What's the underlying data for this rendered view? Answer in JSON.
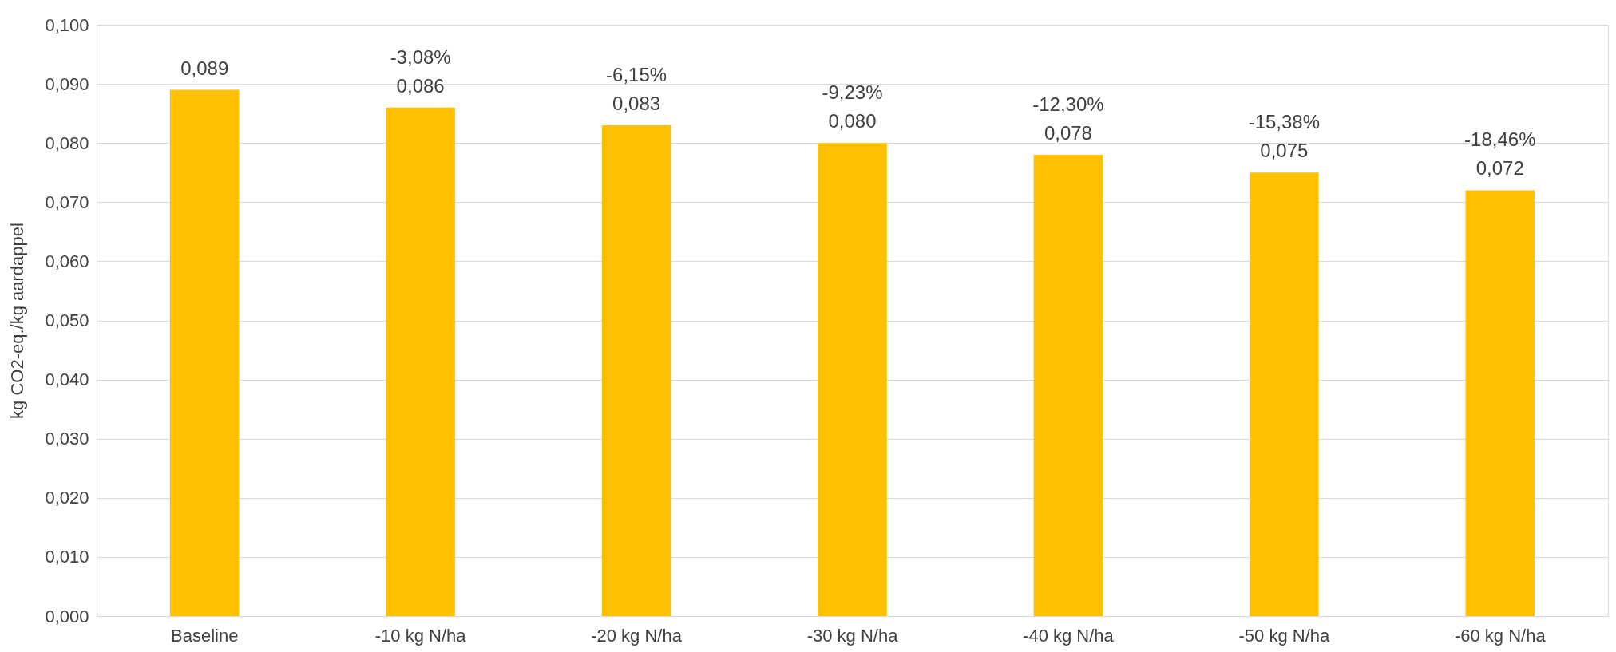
{
  "chart_data": {
    "type": "bar",
    "ylabel": "kg CO2-eq./kg aardappel",
    "categories": [
      "Baseline",
      "-10 kg N/ha",
      "-20 kg N/ha",
      "-30 kg N/ha",
      "-40 kg N/ha",
      "-50 kg N/ha",
      "-60 kg N/ha"
    ],
    "values": [
      0.089,
      0.086,
      0.083,
      0.08,
      0.078,
      0.075,
      0.072
    ],
    "value_labels": [
      "0,089",
      "0,086",
      "0,083",
      "0,080",
      "0,078",
      "0,075",
      "0,072"
    ],
    "color": "#ffc000",
    "ylim": [
      0,
      0.1
    ],
    "yticks": [
      {
        "value": 0,
        "label": "0,000"
      },
      {
        "value": 0.01,
        "label": "0,010"
      },
      {
        "value": 0.02,
        "label": "0,020"
      },
      {
        "value": 0.03,
        "label": "0,030"
      },
      {
        "value": 0.04,
        "label": "0,040"
      },
      {
        "value": 0.05,
        "label": "0,050"
      },
      {
        "value": 0.06,
        "label": "0,060"
      },
      {
        "value": 0.07,
        "label": "0,070"
      },
      {
        "value": 0.08,
        "label": "0,080"
      },
      {
        "value": 0.09,
        "label": "0,090"
      },
      {
        "value": 0.1,
        "label": "0,100"
      }
    ],
    "grid": "y",
    "annotations": [
      {
        "text": "-3,08%",
        "x": "-10 kg N/ha",
        "y": 0.086
      },
      {
        "text": "-6,15%",
        "x": "-20 kg N/ha",
        "y": 0.083
      },
      {
        "text": "-9,23%",
        "x": "-30 kg N/ha",
        "y": 0.08
      },
      {
        "text": "-12,30%",
        "x": "-40 kg N/ha",
        "y": 0.078
      },
      {
        "text": "-15,38%",
        "x": "-50 kg N/ha",
        "y": 0.075
      },
      {
        "text": "-18,46%",
        "x": "-60 kg N/ha",
        "y": 0.072
      }
    ]
  }
}
